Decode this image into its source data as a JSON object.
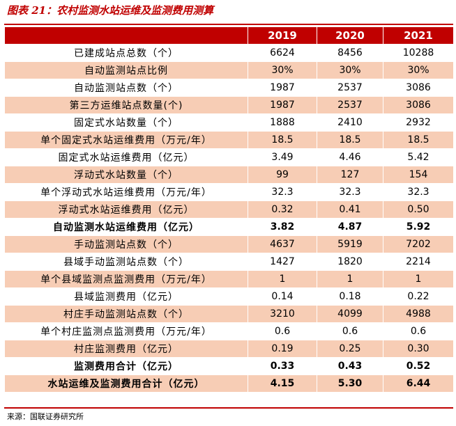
{
  "title": "图表 21：农村监测水站运维及监测费用测算",
  "header": {
    "blank": "",
    "years": [
      "2019",
      "2020",
      "2021"
    ]
  },
  "rows": [
    {
      "label": "已建成站点总数（个）",
      "values": [
        "6624",
        "8456",
        "10288"
      ]
    },
    {
      "label": "自动监测站点比例",
      "values": [
        "30%",
        "30%",
        "30%"
      ]
    },
    {
      "label": "自动监测站点数（个）",
      "values": [
        "1987",
        "2537",
        "3086"
      ]
    },
    {
      "label": "第三方运维站点数量(个)",
      "values": [
        "1987",
        "2537",
        "3086"
      ]
    },
    {
      "label": "固定式水站数量（个）",
      "values": [
        "1888",
        "2410",
        "2932"
      ]
    },
    {
      "label": "单个固定式水站运维费用（万元/年）",
      "values": [
        "18.5",
        "18.5",
        "18.5"
      ]
    },
    {
      "label": "固定式水站运维费用（亿元）",
      "values": [
        "3.49",
        "4.46",
        "5.42"
      ]
    },
    {
      "label": "浮动式水站数量（个）",
      "values": [
        "99",
        "127",
        "154"
      ]
    },
    {
      "label": "单个浮动式水站运维费用（万元/年）",
      "values": [
        "32.3",
        "32.3",
        "32.3"
      ]
    },
    {
      "label": "浮动式水站运维费用（亿元）",
      "values": [
        "0.32",
        "0.41",
        "0.50"
      ]
    },
    {
      "label": "自动监测水站运维费用（亿元）",
      "values": [
        "3.82",
        "4.87",
        "5.92"
      ],
      "bold": true
    },
    {
      "label": "手动监测站点数（个）",
      "values": [
        "4637",
        "5919",
        "7202"
      ]
    },
    {
      "label": "县域手动监测站点数（个）",
      "values": [
        "1427",
        "1820",
        "2214"
      ]
    },
    {
      "label": "单个县域监测点监测费用（万元/年）",
      "values": [
        "1",
        "1",
        "1"
      ]
    },
    {
      "label": "县域监测费用（亿元）",
      "values": [
        "0.14",
        "0.18",
        "0.22"
      ]
    },
    {
      "label": "村庄手动监测站点数（个）",
      "values": [
        "3210",
        "4099",
        "4988"
      ]
    },
    {
      "label": "单个村庄监测点监测费用（万元/年）",
      "values": [
        "0.6",
        "0.6",
        "0.6"
      ]
    },
    {
      "label": "村庄监测费用（亿元）",
      "values": [
        "0.19",
        "0.25",
        "0.30"
      ]
    },
    {
      "label": "监测费用合计（亿元）",
      "values": [
        "0.33",
        "0.43",
        "0.52"
      ],
      "bold": true
    },
    {
      "label": "水站运维及监测费用合计（亿元）",
      "values": [
        "4.15",
        "5.30",
        "6.44"
      ],
      "bold": true
    }
  ],
  "source": "来源：国联证券研究所",
  "colors": {
    "accent": "#c00000",
    "band": "#f7cdb5",
    "plain": "#ffffff"
  }
}
